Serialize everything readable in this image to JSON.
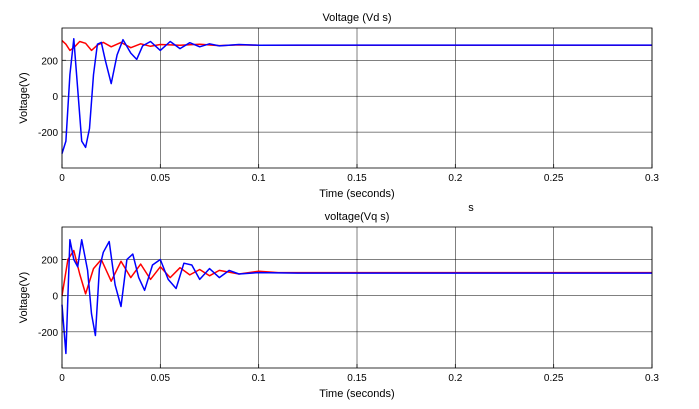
{
  "stray_label": "s",
  "chart_data": [
    {
      "type": "line",
      "title": "Voltage (Vd s)",
      "xlabel": "Time (seconds)",
      "ylabel": "Voltage(V)",
      "xlim": [
        0,
        0.3
      ],
      "ylim": [
        -400,
        380
      ],
      "xticks": [
        0,
        0.05,
        0.1,
        0.15,
        0.2,
        0.25,
        0.3
      ],
      "xtick_labels": [
        "0",
        "0.05",
        "0.1",
        "0.15",
        "0.2",
        "0.25",
        "0.3"
      ],
      "yticks": [
        -200,
        0,
        200
      ],
      "ytick_labels": [
        "-200",
        "0",
        "200"
      ],
      "grid": true,
      "series": [
        {
          "color": "#ff0000",
          "x": [
            0,
            0.002,
            0.004,
            0.006,
            0.009,
            0.012,
            0.015,
            0.018,
            0.021,
            0.025,
            0.03,
            0.035,
            0.04,
            0.045,
            0.05,
            0.06,
            0.07,
            0.08,
            0.09,
            0.1,
            0.3
          ],
          "y": [
            310,
            290,
            255,
            270,
            305,
            295,
            255,
            285,
            300,
            275,
            300,
            270,
            292,
            278,
            288,
            284,
            290,
            282,
            286,
            284,
            284
          ]
        },
        {
          "color": "#0000ff",
          "x": [
            0,
            0.002,
            0.004,
            0.006,
            0.008,
            0.01,
            0.012,
            0.014,
            0.016,
            0.018,
            0.02,
            0.022,
            0.025,
            0.028,
            0.031,
            0.035,
            0.038,
            0.041,
            0.045,
            0.05,
            0.055,
            0.06,
            0.065,
            0.07,
            0.075,
            0.08,
            0.09,
            0.1,
            0.12,
            0.3
          ],
          "y": [
            -320,
            -250,
            120,
            320,
            40,
            -250,
            -285,
            -180,
            120,
            290,
            300,
            200,
            70,
            230,
            315,
            240,
            205,
            280,
            305,
            255,
            305,
            265,
            298,
            275,
            292,
            280,
            288,
            284,
            285,
            285
          ]
        }
      ]
    },
    {
      "type": "line",
      "title": "voltage(Vq s)",
      "xlabel": "Time (seconds)",
      "ylabel": "Voltage(V)",
      "xlim": [
        0,
        0.3
      ],
      "ylim": [
        -400,
        380
      ],
      "xticks": [
        0,
        0.05,
        0.1,
        0.15,
        0.2,
        0.25,
        0.3
      ],
      "xtick_labels": [
        "0",
        "0.05",
        "0.1",
        "0.15",
        "0.2",
        "0.25",
        "0.3"
      ],
      "yticks": [
        -200,
        0,
        200
      ],
      "ytick_labels": [
        "-200",
        "0",
        "200"
      ],
      "grid": true,
      "series": [
        {
          "color": "#ff0000",
          "x": [
            0,
            0.003,
            0.006,
            0.009,
            0.012,
            0.016,
            0.02,
            0.025,
            0.03,
            0.035,
            0.04,
            0.045,
            0.05,
            0.055,
            0.06,
            0.065,
            0.07,
            0.075,
            0.08,
            0.09,
            0.1,
            0.11,
            0.3
          ],
          "y": [
            0,
            200,
            250,
            120,
            10,
            150,
            200,
            80,
            190,
            100,
            175,
            90,
            160,
            100,
            155,
            115,
            145,
            110,
            140,
            120,
            135,
            128,
            128
          ]
        },
        {
          "color": "#0000ff",
          "x": [
            0,
            0.002,
            0.004,
            0.006,
            0.008,
            0.01,
            0.013,
            0.015,
            0.017,
            0.019,
            0.021,
            0.024,
            0.027,
            0.03,
            0.033,
            0.036,
            0.039,
            0.042,
            0.046,
            0.05,
            0.054,
            0.058,
            0.062,
            0.066,
            0.07,
            0.075,
            0.08,
            0.085,
            0.09,
            0.1,
            0.12,
            0.3
          ],
          "y": [
            -50,
            -320,
            310,
            200,
            160,
            310,
            140,
            -100,
            -220,
            150,
            240,
            300,
            60,
            -60,
            200,
            230,
            100,
            30,
            170,
            200,
            90,
            40,
            180,
            170,
            90,
            150,
            100,
            140,
            120,
            128,
            125,
            125
          ]
        }
      ]
    }
  ]
}
